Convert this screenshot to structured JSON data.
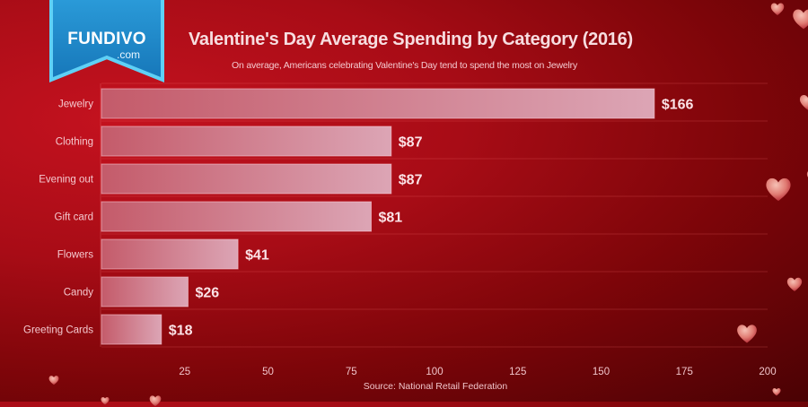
{
  "branding": {
    "logo_main": "FUNDIVO",
    "logo_sub": ".com"
  },
  "chart_data": {
    "type": "bar",
    "orientation": "horizontal",
    "title": "Valentine's Day Average Spending by Category (2016)",
    "subtitle": "On average, Americans celebrating Valentine's Day tend to spend the most on Jewelry",
    "categories": [
      "Jewelry",
      "Clothing",
      "Evening out",
      "Gift card",
      "Flowers",
      "Candy",
      "Greeting Cards"
    ],
    "values": [
      166,
      87,
      87,
      81,
      41,
      26,
      18
    ],
    "data_labels": [
      "$166",
      "$87",
      "$87",
      "$81",
      "$41",
      "$26",
      "$18"
    ],
    "xlabel": "",
    "ylabel": "",
    "xlim": [
      0,
      200
    ],
    "x_ticks": [
      25,
      50,
      75,
      100,
      125,
      150,
      175,
      200
    ],
    "grid": true,
    "legend": "none",
    "source": "Source: National Retail Federation"
  },
  "colors": {
    "bar_start": "#c9606e",
    "bar_end": "#dea7b6",
    "label_text": "#f4c9cf",
    "value_text": "#fbe3e7",
    "logo_blue": "#1f8ccb"
  }
}
